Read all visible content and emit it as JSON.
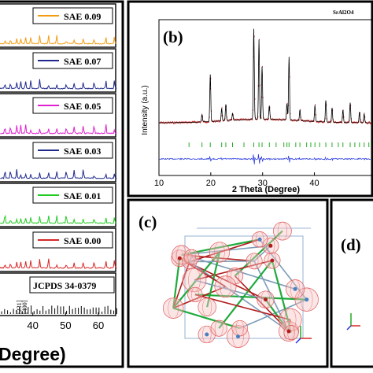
{
  "panels": [
    {
      "letter": "(b)"
    },
    {
      "letter": "(c)"
    },
    {
      "letter": "(d)"
    }
  ],
  "chart_data": [
    {
      "type": "line",
      "panel": "a",
      "xlabel": "Degree)",
      "xlim": [
        30,
        66
      ],
      "xticks": [
        40,
        50,
        60
      ],
      "tick_labels": [
        "40",
        "50",
        "60"
      ],
      "series": [
        {
          "name": "SAE 0.09",
          "color": "#f39c12"
        },
        {
          "name": "SAE 0.07",
          "color": "#1f2a8c"
        },
        {
          "name": "SAE 0.05",
          "color": "#e020d0"
        },
        {
          "name": "SAE 0.03",
          "color": "#1f2a8c"
        },
        {
          "name": "SAE 0.01",
          "color": "#22cc22"
        },
        {
          "name": "SAE 0.00",
          "color": "#d62728"
        }
      ],
      "reference": {
        "name": "JCPDS 34-0379",
        "hkl": [
          "[231]",
          "[400]"
        ],
        "hkl_positions": [
          36.5,
          38.2
        ]
      },
      "peak_positions": [
        31.5,
        33.2,
        35.1,
        36.3,
        37.8,
        39.4,
        42.1,
        44.8,
        47.3,
        50.2,
        52.6,
        55.4,
        58.7,
        62.3,
        64.9
      ]
    },
    {
      "type": "line",
      "panel": "b",
      "title": "SrAl2O4",
      "xlabel": "2 Theta (Degree)",
      "ylabel": "Intensity (a.u.)",
      "xlim": [
        10,
        51
      ],
      "xticks": [
        10,
        20,
        30,
        40
      ],
      "tick_labels": [
        "10",
        "20",
        "30",
        "40"
      ],
      "series": [
        {
          "name": "observed",
          "color": "#d62728"
        },
        {
          "name": "calculated",
          "color": "#000000"
        },
        {
          "name": "difference",
          "color": "#2233dd"
        },
        {
          "name": "bragg positions",
          "color": "#22aa22"
        }
      ],
      "peaks": {
        "x": [
          18.3,
          19.9,
          22.1,
          22.9,
          24.2,
          28.3,
          29.3,
          29.9,
          31.3,
          34.7,
          35.1,
          37.2,
          40.1,
          42.2,
          43.4,
          45.5,
          46.9,
          48.7,
          49.6
        ],
        "y": [
          8,
          52,
          14,
          18,
          8,
          100,
          88,
          58,
          15,
          18,
          70,
          12,
          18,
          24,
          16,
          14,
          22,
          12,
          10
        ]
      },
      "bragg_positions": [
        15.8,
        18.3,
        19.9,
        22.1,
        22.9,
        24.2,
        26.4,
        28.3,
        29.3,
        29.9,
        31.3,
        32.6,
        34.1,
        34.7,
        35.1,
        36.4,
        37.2,
        38.5,
        39.3,
        40.1,
        41.0,
        42.2,
        43.4,
        44.6,
        45.5,
        46.9,
        47.8,
        48.7,
        49.6,
        50.5
      ]
    }
  ]
}
